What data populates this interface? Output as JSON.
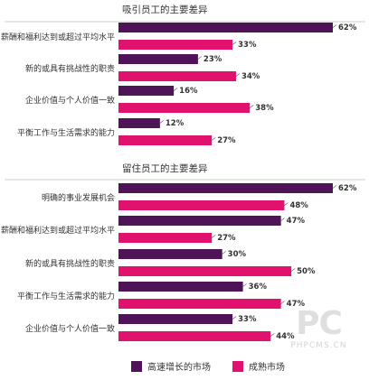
{
  "colors": {
    "growth": "#4e1457",
    "mature": "#e0126e",
    "text": "#333333",
    "divider": "#cccccc"
  },
  "legend": {
    "growth_label": "高速增长的市场",
    "mature_label": "成熟市场"
  },
  "watermark": {
    "logo": "PC",
    "text": "PHPCMS.CN"
  },
  "chart_data": [
    {
      "type": "bar",
      "orientation": "horizontal",
      "title": "吸引员工的主要差异",
      "categories": [
        "薪酬和福利达到或超过平均水平",
        "新的或具有挑战性的职责",
        "企业价值与个人价值一致",
        "平衡工作与生活需求的能力"
      ],
      "series": [
        {
          "name": "高速增长的市场",
          "values": [
            62,
            23,
            16,
            12
          ],
          "labels": [
            "62%",
            "23%",
            "16%",
            "12%"
          ]
        },
        {
          "name": "成熟市场",
          "values": [
            33,
            34,
            38,
            27
          ],
          "labels": [
            "33%",
            "34%",
            "38%",
            "27%"
          ]
        }
      ],
      "xlim": [
        0,
        62
      ],
      "legend": "bottom"
    },
    {
      "type": "bar",
      "orientation": "horizontal",
      "title": "留住员工的主要差异",
      "categories": [
        "明确的事业发展机会",
        "薪酬和福利达到或超过平均水平",
        "新的或具有挑战性的职责",
        "平衡工作与生活需求的能力",
        "企业价值与个人价值一致"
      ],
      "series": [
        {
          "name": "高速增长的市场",
          "values": [
            62,
            47,
            30,
            36,
            33
          ],
          "labels": [
            "62%",
            "47%",
            "30%",
            "36%",
            "33%"
          ]
        },
        {
          "name": "成熟市场",
          "values": [
            48,
            27,
            50,
            47,
            44
          ],
          "labels": [
            "48%",
            "27%",
            "50%",
            "47%",
            "44%"
          ]
        }
      ],
      "xlim": [
        0,
        62
      ],
      "legend": "bottom"
    }
  ]
}
